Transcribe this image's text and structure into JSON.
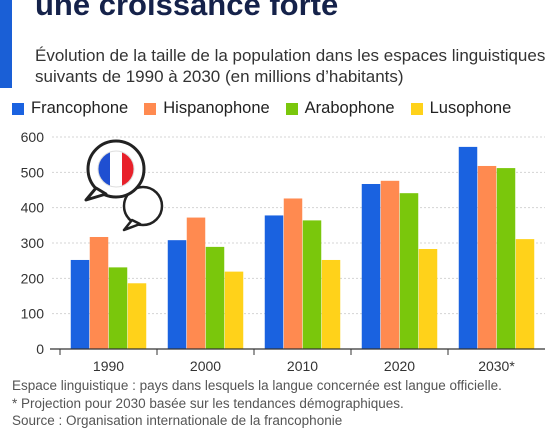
{
  "header": {
    "title": "une croissance forte",
    "subtitle": "Évolution de la taille de la population dans les espaces linguistiques suivants de 1990 à 2030 (en millions d’habitants)"
  },
  "colors": {
    "accent": "#1a5fd6"
  },
  "chart_data": {
    "type": "bar",
    "categories": [
      "1990",
      "2000",
      "2010",
      "2020",
      "2030*"
    ],
    "series": [
      {
        "name": "Francophone",
        "color": "#1a62e0",
        "values": [
          252,
          308,
          378,
          467,
          572
        ]
      },
      {
        "name": "Hispanophone",
        "color": "#ff8a50",
        "values": [
          317,
          372,
          426,
          476,
          518
        ]
      },
      {
        "name": "Arabophone",
        "color": "#7ac70c",
        "values": [
          231,
          289,
          364,
          441,
          512
        ]
      },
      {
        "name": "Lusophone",
        "color": "#ffd21a",
        "values": [
          186,
          219,
          252,
          283,
          311
        ]
      }
    ],
    "yticks": [
      "0",
      "100",
      "200",
      "300",
      "400",
      "500",
      "600"
    ],
    "ylim": [
      0,
      600
    ],
    "grid": true,
    "legend_position": "top"
  },
  "badge": {
    "icon": "speech-bubbles-french-flag-icon"
  },
  "footnotes": [
    "Espace linguistique : pays dans lesquels la langue concernée est langue officielle.",
    "* Projection pour 2030 basée sur les tendances démographiques.",
    "Source : Organisation internationale de la francophonie"
  ]
}
